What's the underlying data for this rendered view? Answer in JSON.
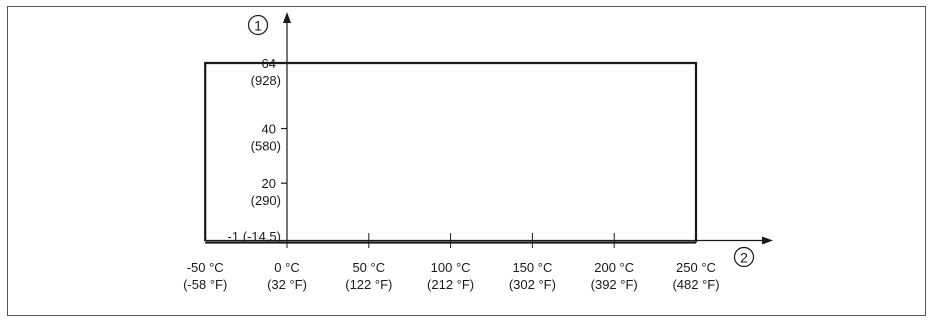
{
  "markers": {
    "y_axis_marker": "1",
    "x_axis_marker": "2"
  },
  "colors": {
    "frame": "#555555",
    "axis": "#1a1a1a",
    "envelope": "#1a1a1a"
  },
  "chart_data": {
    "type": "area",
    "title": "",
    "xlabel": "",
    "ylabel": "",
    "x_ticks": [
      {
        "value": -50,
        "label": "-50 °C",
        "sublabel": "(-58 °F)"
      },
      {
        "value": 0,
        "label": "0 °C",
        "sublabel": "(32 °F)"
      },
      {
        "value": 50,
        "label": "50 °C",
        "sublabel": "(122 °F)"
      },
      {
        "value": 100,
        "label": "100 °C",
        "sublabel": "(212 °F)"
      },
      {
        "value": 150,
        "label": "150 °C",
        "sublabel": "(302 °F)"
      },
      {
        "value": 200,
        "label": "200 °C",
        "sublabel": "(392 °F)"
      },
      {
        "value": 250,
        "label": "250 °C",
        "sublabel": "(482 °F)"
      }
    ],
    "y_ticks": [
      {
        "value": 64,
        "label": "64",
        "sublabel": "(928)"
      },
      {
        "value": 40,
        "label": "40",
        "sublabel": "(580)"
      },
      {
        "value": 20,
        "label": "20",
        "sublabel": "(290)"
      },
      {
        "value": -1,
        "label": "-1",
        "sublabel": "(-14,5)"
      }
    ],
    "envelope": {
      "x_min": -50,
      "x_max": 250,
      "y_min": -1,
      "y_max": 64
    },
    "xlim": [
      -50,
      250
    ],
    "ylim": [
      -1,
      64
    ],
    "grid": false
  }
}
